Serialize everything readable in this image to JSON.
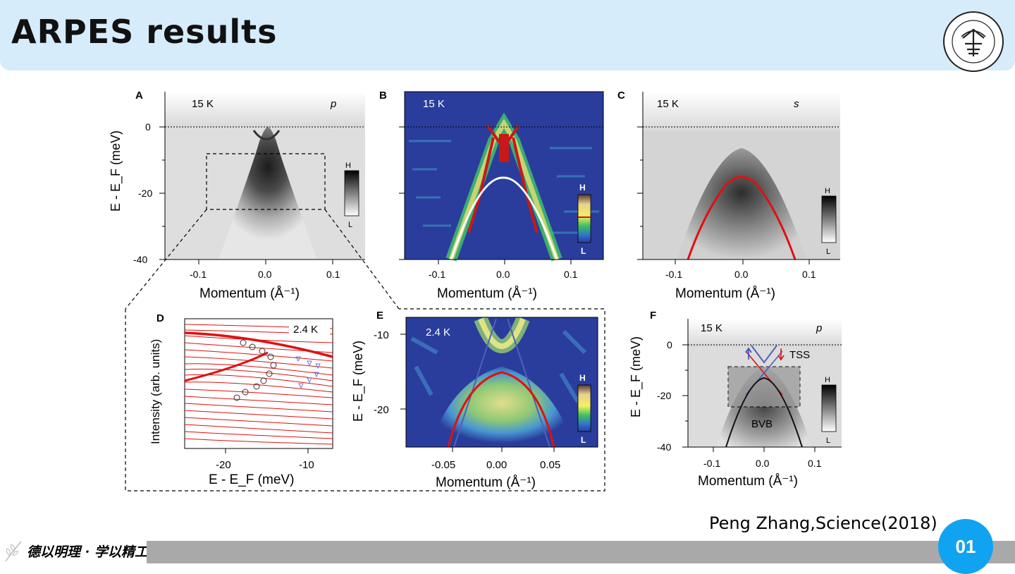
{
  "slide": {
    "title": "ARPES results",
    "citation": "Peng Zhang,Science(2018)",
    "page_number": "01",
    "motto": "德以明理 · 学以精工",
    "logo_icon": "university-seal-icon"
  },
  "panels": {
    "A": {
      "letter": "A",
      "temp": "15 K",
      "pol": "p",
      "ylabel": "E - E_F (meV)",
      "xlabel": "Momentum (Å⁻¹)",
      "y_ticks": [
        "0",
        "-20",
        "-40"
      ],
      "x_ticks": [
        "-0.1",
        "0.0",
        "0.1"
      ],
      "colorbar": [
        "H",
        "L"
      ]
    },
    "B": {
      "letter": "B",
      "temp": "15 K",
      "xlabel": "Momentum (Å⁻¹)",
      "x_ticks": [
        "-0.1",
        "0.0",
        "0.1"
      ],
      "colorbar": [
        "H",
        "L"
      ]
    },
    "C": {
      "letter": "C",
      "temp": "15 K",
      "pol": "s",
      "xlabel": "Momentum (Å⁻¹)",
      "x_ticks": [
        "-0.1",
        "0.0",
        "0.1"
      ],
      "colorbar": [
        "H",
        "L"
      ]
    },
    "D": {
      "letter": "D",
      "temp": "2.4 K",
      "ylabel": "Intensity (arb. units)",
      "xlabel": "E - E_F (meV)",
      "x_ticks": [
        "-20",
        "-10"
      ]
    },
    "E": {
      "letter": "E",
      "temp": "2.4 K",
      "ylabel": "E - E_F (meV)",
      "xlabel": "Momentum (Å⁻¹)",
      "y_ticks": [
        "-10",
        "-20"
      ],
      "x_ticks": [
        "-0.05",
        "0.00",
        "0.05"
      ],
      "colorbar": [
        "H",
        "L"
      ]
    },
    "F": {
      "letter": "F",
      "temp": "15 K",
      "pol": "p",
      "ylabel": "E - E_F (meV)",
      "xlabel": "Momentum (Å⁻¹)",
      "y_ticks": [
        "0",
        "-20",
        "-40"
      ],
      "x_ticks": [
        "-0.1",
        "0.0",
        "0.1"
      ],
      "colorbar": [
        "H",
        "L"
      ],
      "labels": [
        "TSS",
        "BVB"
      ]
    }
  },
  "colors": {
    "header_bg": "#d6ecfa",
    "accent": "#10a4f0",
    "footer": "#a9a9a9",
    "fit_red": "#e01010",
    "spectral_blue": "#2a3d9c"
  }
}
